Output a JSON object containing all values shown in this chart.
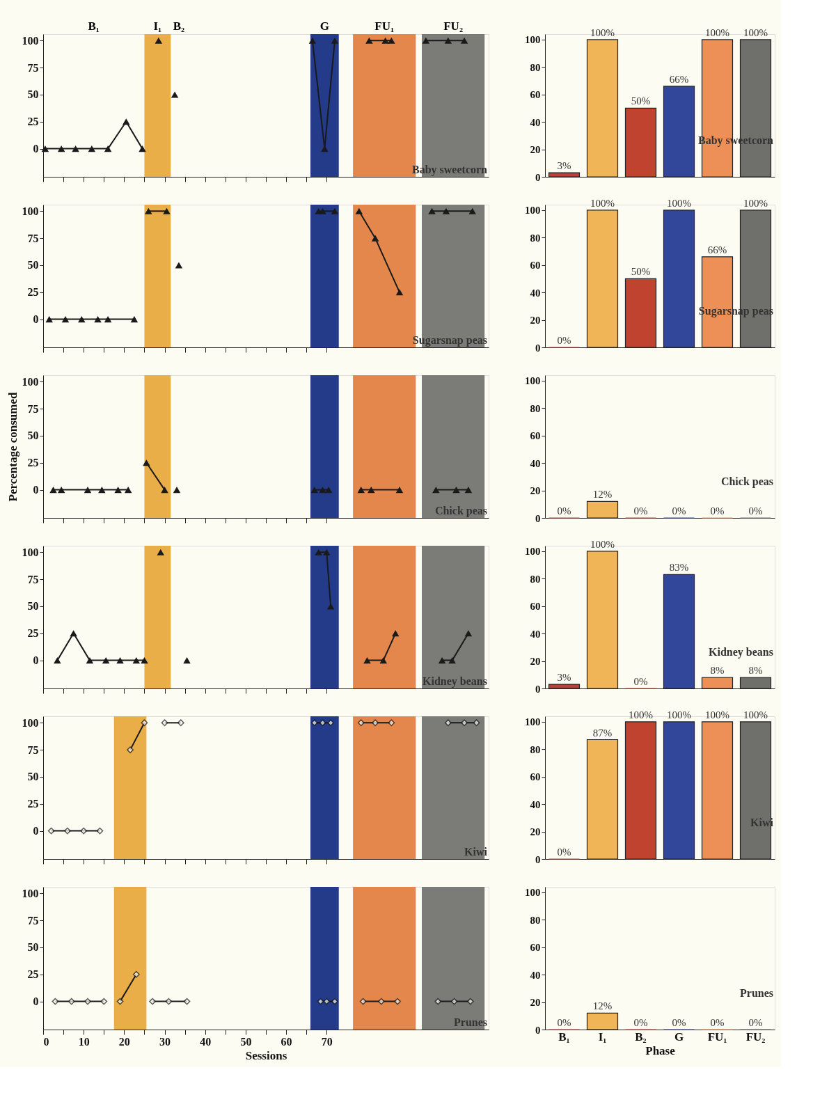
{
  "chart_data": [
    {
      "type": "line",
      "xlim": [
        0,
        110
      ],
      "ylim": [
        -26,
        106
      ],
      "xticks": [
        0,
        {
          "value": 5,
          "label": null
        },
        10,
        {
          "value": 15,
          "label": null
        },
        20,
        {
          "value": 25,
          "label": null
        },
        30,
        {
          "value": 35,
          "label": null
        },
        40,
        {
          "value": 45,
          "label": null
        },
        50,
        {
          "value": 55,
          "label": null
        },
        60,
        {
          "value": 65,
          "label": null
        },
        70
      ],
      "yticks": [
        0,
        25,
        50,
        75,
        100
      ],
      "tick_labels": "y",
      "marker": "triangle",
      "grid": false,
      "bands": [
        {
          "axis": "x",
          "from": 25,
          "to": 31.5,
          "label": "I₁",
          "color": "#e9ae48"
        },
        {
          "axis": "x",
          "from": 66,
          "to": 73,
          "label": "G",
          "color": "#243b8a"
        },
        {
          "axis": "x",
          "from": 76.5,
          "to": 92,
          "label": "FU₁",
          "color": "#e3874c"
        },
        {
          "axis": "x",
          "from": 93.5,
          "to": 109,
          "label": "FU₂",
          "color": "#7b7b78"
        }
      ],
      "annotations": [
        "B₁",
        "B₂",
        "Baby sweetcorn"
      ],
      "series": [
        {
          "color": "#1a1a1a",
          "x": [
            0.5,
            4.5,
            8,
            12,
            16,
            20.5,
            24.5
          ],
          "values": [
            0,
            0,
            0,
            0,
            0,
            25,
            0
          ]
        },
        {
          "color": "#1a1a1a",
          "x": [
            28.5
          ],
          "values": [
            100
          ]
        },
        {
          "color": "#1a1a1a",
          "x": [
            32.5
          ],
          "values": [
            50
          ]
        },
        {
          "color": "#1a1a1a",
          "x": [
            66.5,
            69.5,
            72
          ],
          "values": [
            100,
            0,
            100
          ]
        },
        {
          "color": "#1a1a1a",
          "x": [
            80.5,
            84.5,
            86
          ],
          "values": [
            100,
            100,
            100
          ]
        },
        {
          "color": "#1a1a1a",
          "x": [
            94.5,
            100,
            104
          ],
          "values": [
            100,
            100,
            100
          ]
        }
      ]
    },
    {
      "type": "bar",
      "categories": [
        null,
        null,
        null,
        null,
        null,
        null
      ],
      "values": [
        3,
        100,
        50,
        66,
        100,
        100
      ],
      "value_labels": [
        "3%",
        "100%",
        "50%",
        "66%",
        "100%",
        "100%"
      ],
      "colors": [
        "#b8403a",
        "#efb556",
        "#c0432f",
        "#33479a",
        "#ec9057",
        "#6f706c"
      ],
      "ylim": [
        0,
        104
      ],
      "yticks": [
        0,
        20,
        40,
        60,
        80,
        100
      ],
      "tick_labels": "y",
      "grid": false,
      "annotations": [
        "Baby sweetcorn"
      ]
    },
    {
      "type": "line",
      "xlim": [
        0,
        110
      ],
      "ylim": [
        -26,
        106
      ],
      "xticks": [
        0,
        {
          "value": 5,
          "label": null
        },
        10,
        {
          "value": 15,
          "label": null
        },
        20,
        {
          "value": 25,
          "label": null
        },
        30,
        {
          "value": 35,
          "label": null
        },
        40,
        {
          "value": 45,
          "label": null
        },
        50,
        {
          "value": 55,
          "label": null
        },
        60,
        {
          "value": 65,
          "label": null
        },
        70
      ],
      "yticks": [
        0,
        25,
        50,
        75,
        100
      ],
      "tick_labels": "y",
      "marker": "triangle",
      "grid": false,
      "bands": [
        {
          "axis": "x",
          "from": 25,
          "to": 31.5,
          "color": "#e9ae48"
        },
        {
          "axis": "x",
          "from": 66,
          "to": 73,
          "color": "#243b8a"
        },
        {
          "axis": "x",
          "from": 76.5,
          "to": 92,
          "color": "#e3874c"
        },
        {
          "axis": "x",
          "from": 93.5,
          "to": 109,
          "color": "#7b7b78"
        }
      ],
      "annotations": [
        "Sugarsnap peas"
      ],
      "series": [
        {
          "color": "#1a1a1a",
          "x": [
            1.5,
            5.5,
            9.5,
            13.5,
            16,
            22.5
          ],
          "values": [
            0,
            0,
            0,
            0,
            0,
            0
          ]
        },
        {
          "color": "#1a1a1a",
          "x": [
            26,
            30.5
          ],
          "values": [
            100,
            100
          ]
        },
        {
          "color": "#1a1a1a",
          "x": [
            33.5
          ],
          "values": [
            50
          ]
        },
        {
          "color": "#1a1a1a",
          "x": [
            68,
            69,
            72
          ],
          "values": [
            100,
            100,
            100
          ]
        },
        {
          "color": "#1a1a1a",
          "x": [
            78,
            82,
            88
          ],
          "values": [
            100,
            75,
            25
          ]
        },
        {
          "color": "#1a1a1a",
          "x": [
            96,
            99.5,
            106
          ],
          "values": [
            100,
            100,
            100
          ]
        }
      ]
    },
    {
      "type": "bar",
      "categories": [
        null,
        null,
        null,
        null,
        null,
        null
      ],
      "values": [
        0,
        100,
        50,
        100,
        66,
        100
      ],
      "value_labels": [
        "0%",
        "100%",
        "50%",
        "100%",
        "66%",
        "100%"
      ],
      "colors": [
        "#b8403a",
        "#efb556",
        "#c0432f",
        "#33479a",
        "#ec9057",
        "#6f706c"
      ],
      "ylim": [
        0,
        104
      ],
      "yticks": [
        0,
        20,
        40,
        60,
        80,
        100
      ],
      "tick_labels": "y",
      "grid": false,
      "annotations": [
        "Sugarsnap peas"
      ]
    },
    {
      "type": "line",
      "xlim": [
        0,
        110
      ],
      "ylim": [
        -26,
        106
      ],
      "xticks": [
        0,
        {
          "value": 5,
          "label": null
        },
        10,
        {
          "value": 15,
          "label": null
        },
        20,
        {
          "value": 25,
          "label": null
        },
        30,
        {
          "value": 35,
          "label": null
        },
        40,
        {
          "value": 45,
          "label": null
        },
        50,
        {
          "value": 55,
          "label": null
        },
        60,
        {
          "value": 65,
          "label": null
        },
        70
      ],
      "yticks": [
        0,
        25,
        50,
        75,
        100
      ],
      "tick_labels": "y",
      "marker": "triangle",
      "grid": false,
      "ylabel": "Percentage consumed",
      "bands": [
        {
          "axis": "x",
          "from": 25,
          "to": 31.5,
          "color": "#e9ae48"
        },
        {
          "axis": "x",
          "from": 66,
          "to": 73,
          "color": "#243b8a"
        },
        {
          "axis": "x",
          "from": 76.5,
          "to": 92,
          "color": "#e3874c"
        },
        {
          "axis": "x",
          "from": 93.5,
          "to": 109,
          "color": "#7b7b78"
        }
      ],
      "annotations": [
        "Chick peas"
      ],
      "series": [
        {
          "color": "#1a1a1a",
          "x": [
            2.5,
            4.5,
            11,
            14.5,
            18.5,
            21
          ],
          "values": [
            0,
            0,
            0,
            0,
            0,
            0
          ]
        },
        {
          "color": "#1a1a1a",
          "x": [
            25.5,
            30
          ],
          "values": [
            25,
            0
          ]
        },
        {
          "color": "#1a1a1a",
          "x": [
            33
          ],
          "values": [
            0
          ]
        },
        {
          "color": "#1a1a1a",
          "x": [
            67,
            69,
            70.5
          ],
          "values": [
            0,
            0,
            0
          ]
        },
        {
          "color": "#1a1a1a",
          "x": [
            78.5,
            81,
            88
          ],
          "values": [
            0,
            0,
            0
          ]
        },
        {
          "color": "#1a1a1a",
          "x": [
            97,
            102,
            105
          ],
          "values": [
            0,
            0,
            0
          ]
        }
      ]
    },
    {
      "type": "bar",
      "categories": [
        null,
        null,
        null,
        null,
        null,
        null
      ],
      "values": [
        0,
        12,
        0,
        0,
        0,
        0
      ],
      "value_labels": [
        "0%",
        "12%",
        "0%",
        "0%",
        "0%",
        "0%"
      ],
      "colors": [
        "#b8403a",
        "#efb556",
        "#c0432f",
        "#33479a",
        "#ec9057",
        "#6f706c"
      ],
      "ylim": [
        0,
        104
      ],
      "yticks": [
        0,
        20,
        40,
        60,
        80,
        100
      ],
      "tick_labels": "y",
      "grid": false,
      "annotations": [
        "Chick peas"
      ]
    },
    {
      "type": "line",
      "xlim": [
        0,
        110
      ],
      "ylim": [
        -26,
        106
      ],
      "xticks": [
        0,
        {
          "value": 5,
          "label": null
        },
        10,
        {
          "value": 15,
          "label": null
        },
        20,
        {
          "value": 25,
          "label": null
        },
        30,
        {
          "value": 35,
          "label": null
        },
        40,
        {
          "value": 45,
          "label": null
        },
        50,
        {
          "value": 55,
          "label": null
        },
        60,
        {
          "value": 65,
          "label": null
        },
        70
      ],
      "yticks": [
        0,
        25,
        50,
        75,
        100
      ],
      "tick_labels": "y",
      "marker": "triangle",
      "grid": false,
      "bands": [
        {
          "axis": "x",
          "from": 25,
          "to": 31.5,
          "color": "#e9ae48"
        },
        {
          "axis": "x",
          "from": 66,
          "to": 73,
          "color": "#243b8a"
        },
        {
          "axis": "x",
          "from": 76.5,
          "to": 92,
          "color": "#e3874c"
        },
        {
          "axis": "x",
          "from": 93.5,
          "to": 109,
          "color": "#7b7b78"
        }
      ],
      "annotations": [
        "Kidney beans"
      ],
      "series": [
        {
          "color": "#1a1a1a",
          "x": [
            3.5,
            7.5,
            11.5,
            15.5,
            19,
            23,
            25
          ],
          "values": [
            0,
            25,
            0,
            0,
            0,
            0,
            0
          ]
        },
        {
          "color": "#1a1a1a",
          "x": [
            29
          ],
          "values": [
            100
          ]
        },
        {
          "color": "#1a1a1a",
          "x": [
            35.5
          ],
          "values": [
            0
          ]
        },
        {
          "color": "#1a1a1a",
          "x": [
            68,
            70,
            71
          ],
          "values": [
            100,
            100,
            50
          ]
        },
        {
          "color": "#1a1a1a",
          "x": [
            80,
            84,
            87
          ],
          "values": [
            0,
            0,
            25
          ]
        },
        {
          "color": "#1a1a1a",
          "x": [
            98.5,
            101,
            105
          ],
          "values": [
            0,
            0,
            25
          ]
        }
      ]
    },
    {
      "type": "bar",
      "categories": [
        null,
        null,
        null,
        null,
        null,
        null
      ],
      "values": [
        3,
        100,
        0,
        83,
        8,
        8
      ],
      "value_labels": [
        "3%",
        "100%",
        "0%",
        "83%",
        "8%",
        "8%"
      ],
      "colors": [
        "#b8403a",
        "#efb556",
        "#c0432f",
        "#33479a",
        "#ec9057",
        "#6f706c"
      ],
      "ylim": [
        0,
        104
      ],
      "yticks": [
        0,
        20,
        40,
        60,
        80,
        100
      ],
      "tick_labels": "y",
      "grid": false,
      "annotations": [
        "Kidney beans"
      ]
    },
    {
      "type": "line",
      "xlim": [
        0,
        110
      ],
      "ylim": [
        -26,
        106
      ],
      "xticks": [
        0,
        {
          "value": 5,
          "label": null
        },
        10,
        {
          "value": 15,
          "label": null
        },
        20,
        {
          "value": 25,
          "label": null
        },
        30,
        {
          "value": 35,
          "label": null
        },
        40,
        {
          "value": 45,
          "label": null
        },
        50,
        {
          "value": 55,
          "label": null
        },
        60,
        {
          "value": 65,
          "label": null
        },
        70
      ],
      "yticks": [
        0,
        25,
        50,
        75,
        100
      ],
      "tick_labels": "y",
      "marker": "diamond",
      "grid": false,
      "bands": [
        {
          "axis": "x",
          "from": 17.5,
          "to": 25.5,
          "color": "#e9ae48"
        },
        {
          "axis": "x",
          "from": 66,
          "to": 73,
          "color": "#243b8a"
        },
        {
          "axis": "x",
          "from": 76.5,
          "to": 92,
          "color": "#e3874c"
        },
        {
          "axis": "x",
          "from": 93.5,
          "to": 109,
          "color": "#7b7b78"
        }
      ],
      "annotations": [
        "Kiwi"
      ],
      "series": [
        {
          "color": "#1a1a1a",
          "x": [
            2,
            6,
            10,
            14
          ],
          "values": [
            0,
            0,
            0,
            0
          ]
        },
        {
          "color": "#1a1a1a",
          "x": [
            21.5,
            25
          ],
          "values": [
            75,
            100
          ]
        },
        {
          "color": "#1a1a1a",
          "x": [
            30,
            34
          ],
          "values": [
            100,
            100
          ]
        },
        {
          "color": "#1a1a1a",
          "x": [
            67,
            69,
            71
          ],
          "values": [
            100,
            100,
            100
          ]
        },
        {
          "color": "#1a1a1a",
          "x": [
            78.5,
            82,
            86
          ],
          "values": [
            100,
            100,
            100
          ]
        },
        {
          "color": "#1a1a1a",
          "x": [
            100,
            104,
            107
          ],
          "values": [
            100,
            100,
            100
          ]
        }
      ]
    },
    {
      "type": "bar",
      "categories": [
        null,
        null,
        null,
        null,
        null,
        null
      ],
      "values": [
        0,
        87,
        100,
        100,
        100,
        100
      ],
      "value_labels": [
        "0%",
        "87%",
        "100%",
        "100%",
        "100%",
        "100%"
      ],
      "colors": [
        "#b8403a",
        "#efb556",
        "#c0432f",
        "#33479a",
        "#ec9057",
        "#6f706c"
      ],
      "ylim": [
        0,
        104
      ],
      "yticks": [
        0,
        20,
        40,
        60,
        80,
        100
      ],
      "tick_labels": "y",
      "grid": false,
      "annotations": [
        "Kiwi"
      ]
    },
    {
      "type": "line",
      "xlim": [
        0,
        110
      ],
      "ylim": [
        -26,
        106
      ],
      "xticks": [
        0,
        {
          "value": 5,
          "label": null
        },
        10,
        {
          "value": 15,
          "label": null
        },
        20,
        {
          "value": 25,
          "label": null
        },
        30,
        {
          "value": 35,
          "label": null
        },
        40,
        {
          "value": 45,
          "label": null
        },
        50,
        {
          "value": 55,
          "label": null
        },
        60,
        {
          "value": 65,
          "label": null
        },
        70
      ],
      "yticks": [
        0,
        25,
        50,
        75,
        100
      ],
      "marker": "diamond",
      "grid": false,
      "xlabel": "Sessions",
      "bands": [
        {
          "axis": "x",
          "from": 17.5,
          "to": 25.5,
          "color": "#e9ae48"
        },
        {
          "axis": "x",
          "from": 66,
          "to": 73,
          "color": "#243b8a"
        },
        {
          "axis": "x",
          "from": 76.5,
          "to": 92,
          "color": "#e3874c"
        },
        {
          "axis": "x",
          "from": 93.5,
          "to": 109,
          "color": "#7b7b78"
        }
      ],
      "annotations": [
        "Prunes"
      ],
      "series": [
        {
          "color": "#1a1a1a",
          "x": [
            3,
            7,
            11,
            15
          ],
          "values": [
            0,
            0,
            0,
            0
          ]
        },
        {
          "color": "#1a1a1a",
          "x": [
            19,
            23
          ],
          "values": [
            0,
            25
          ]
        },
        {
          "color": "#1a1a1a",
          "x": [
            27,
            31,
            35.5
          ],
          "values": [
            0,
            0,
            0
          ]
        },
        {
          "color": "#1a1a1a",
          "x": [
            68.5,
            70,
            72
          ],
          "values": [
            0,
            0,
            0
          ]
        },
        {
          "color": "#1a1a1a",
          "x": [
            79,
            83.5,
            87.5
          ],
          "values": [
            0,
            0,
            0
          ]
        },
        {
          "color": "#1a1a1a",
          "x": [
            97.5,
            101.5,
            105.5
          ],
          "values": [
            0,
            0,
            0
          ]
        }
      ]
    },
    {
      "type": "bar",
      "categories": [
        "B₁",
        "I₁",
        "B₂",
        "G",
        "FU₁",
        "FU₂"
      ],
      "values": [
        0,
        12,
        0,
        0,
        0,
        0
      ],
      "value_labels": [
        "0%",
        "12%",
        "0%",
        "0%",
        "0%",
        "0%"
      ],
      "colors": [
        "#b8403a",
        "#efb556",
        "#c0432f",
        "#33479a",
        "#ec9057",
        "#6f706c"
      ],
      "ylim": [
        0,
        104
      ],
      "yticks": [
        0,
        20,
        40,
        60,
        80,
        100
      ],
      "grid": false,
      "xlabel": "Phase",
      "annotations": [
        "Prunes"
      ]
    }
  ]
}
